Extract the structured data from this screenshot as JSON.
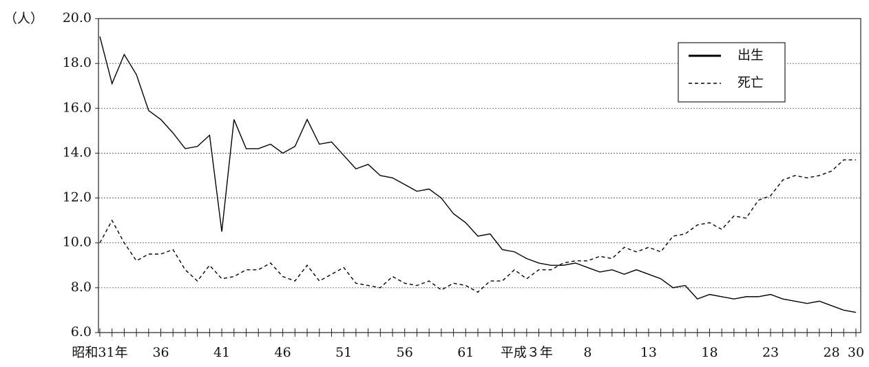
{
  "chart_data": {
    "type": "line",
    "y_label": "（人）",
    "categories": [
      "昭和31年",
      null,
      null,
      null,
      null,
      "36",
      null,
      null,
      null,
      null,
      "41",
      null,
      null,
      null,
      null,
      "46",
      null,
      null,
      null,
      null,
      "51",
      null,
      null,
      null,
      null,
      "56",
      null,
      null,
      null,
      null,
      "61",
      null,
      null,
      null,
      null,
      "平成３年",
      null,
      null,
      null,
      null,
      "8",
      null,
      null,
      null,
      null,
      "13",
      null,
      null,
      null,
      null,
      "18",
      null,
      null,
      null,
      null,
      "23",
      null,
      null,
      null,
      null,
      "28",
      null,
      "30"
    ],
    "series": [
      {
        "name": "出生",
        "color": "#000000",
        "style": "solid",
        "values": [
          19.2,
          17.1,
          18.4,
          17.5,
          15.9,
          15.5,
          14.9,
          14.2,
          14.3,
          14.8,
          10.5,
          15.5,
          14.2,
          14.2,
          14.4,
          14.0,
          14.3,
          15.5,
          14.4,
          14.5,
          13.9,
          13.3,
          13.5,
          13.0,
          12.9,
          12.6,
          12.3,
          12.4,
          12.0,
          11.3,
          10.9,
          10.3,
          10.4,
          9.7,
          9.6,
          9.3,
          9.1,
          9.0,
          9.0,
          9.1,
          8.9,
          8.7,
          8.8,
          8.6,
          8.8,
          8.6,
          8.4,
          8.0,
          8.1,
          7.5,
          7.7,
          7.6,
          7.5,
          7.6,
          7.6,
          7.7,
          7.5,
          7.4,
          7.3,
          7.4,
          7.2,
          7.0,
          6.9
        ]
      },
      {
        "name": "死亡",
        "color": "#000000",
        "style": "dashed",
        "values": [
          10.0,
          11.0,
          10.0,
          9.2,
          9.5,
          9.5,
          9.7,
          8.8,
          8.3,
          9.0,
          8.4,
          8.5,
          8.8,
          8.8,
          9.1,
          8.5,
          8.3,
          9.0,
          8.3,
          8.6,
          8.9,
          8.2,
          8.1,
          8.0,
          8.5,
          8.2,
          8.1,
          8.3,
          7.9,
          8.2,
          8.1,
          7.8,
          8.3,
          8.3,
          8.8,
          8.4,
          8.8,
          8.8,
          9.1,
          9.2,
          9.2,
          9.4,
          9.3,
          9.8,
          9.6,
          9.8,
          9.6,
          10.3,
          10.4,
          10.8,
          10.9,
          10.6,
          11.2,
          11.1,
          11.9,
          12.1,
          12.8,
          13.0,
          12.9,
          13.0,
          13.2,
          13.7,
          13.7
        ]
      }
    ],
    "ylim": [
      6,
      20
    ],
    "yticks": [
      {
        "value": 6,
        "label": "6.0"
      },
      {
        "value": 8,
        "label": "8.0"
      },
      {
        "value": 10,
        "label": "10.0"
      },
      {
        "value": 12,
        "label": "12.0"
      },
      {
        "value": 14,
        "label": "14.0"
      },
      {
        "value": 16,
        "label": "16.0"
      },
      {
        "value": 18,
        "label": "18.0"
      },
      {
        "value": 20,
        "label": "20.0"
      }
    ],
    "grid": true,
    "legend": "top-right"
  }
}
